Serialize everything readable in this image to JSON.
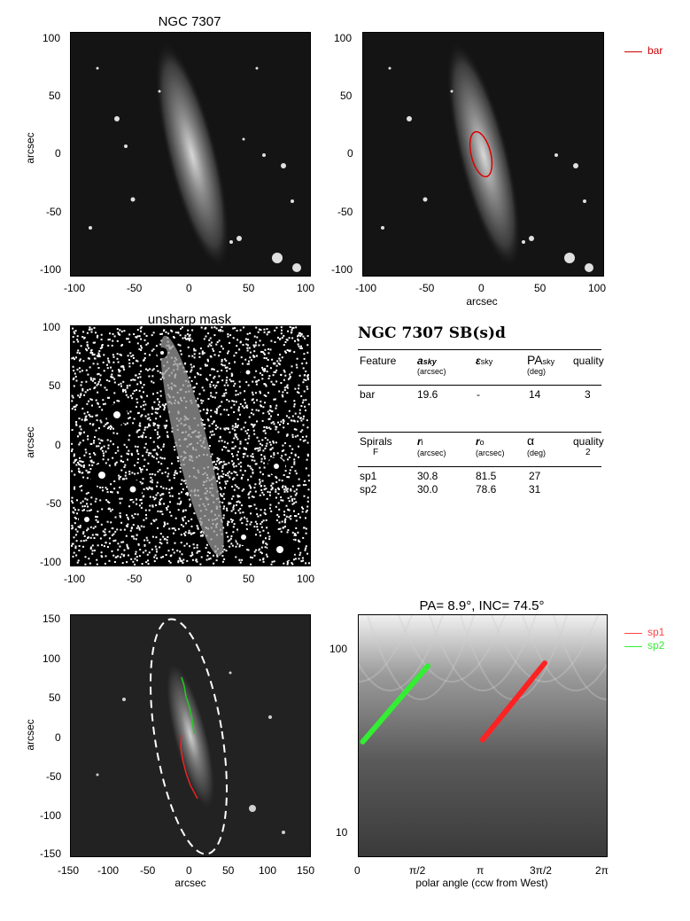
{
  "panels": {
    "p1": {
      "title": "NGC 7307",
      "ylabel": "arcsec",
      "xticks": [
        "-100",
        "-50",
        "0",
        "50",
        "100"
      ],
      "yticks": [
        "100",
        "50",
        "0",
        "-50",
        "-100"
      ]
    },
    "p2": {
      "xlabel": "arcsec",
      "xticks": [
        "-100",
        "-50",
        "0",
        "50",
        "100"
      ],
      "yticks": [
        "100",
        "50",
        "0",
        "-50",
        "-100"
      ],
      "legend": "bar",
      "legend_color": "#cc0000"
    },
    "p3": {
      "title": "unsharp mask",
      "ylabel": "arcsec",
      "xticks": [
        "-100",
        "-50",
        "0",
        "50",
        "100"
      ],
      "yticks": [
        "100",
        "50",
        "0",
        "-50",
        "-100"
      ]
    },
    "p5": {
      "ylabel": "arcsec",
      "xlabel": "arcsec",
      "xticks": [
        "-150",
        "-100",
        "-50",
        "0",
        "50",
        "100",
        "150"
      ],
      "yticks": [
        "150",
        "100",
        "50",
        "0",
        "-50",
        "-100",
        "-150"
      ]
    },
    "p6": {
      "title": "PA=   8.9°, INC=  74.5°",
      "xlabel": "polar angle (ccw from West)",
      "xticks": [
        "0",
        "π/2",
        "π",
        "3π/2",
        "2π"
      ],
      "yticks": [
        "100",
        "10"
      ],
      "legend": [
        {
          "name": "sp1",
          "color": "#ff4444"
        },
        {
          "name": "sp2",
          "color": "#33ee33"
        }
      ]
    }
  },
  "table": {
    "title": "NGC 7307  SB(s)d",
    "header1": {
      "feature": "Feature",
      "a": "a",
      "a_sub": "sky",
      "a_unit": "(arcsec)",
      "eps": "ε",
      "eps_sub": "sky",
      "pa": "PA",
      "pa_sub": "sky",
      "pa_unit": "(deg)",
      "quality": "quality"
    },
    "bar_row": {
      "name": "bar",
      "a": "19.6",
      "eps": "-",
      "pa": "14",
      "quality": "3"
    },
    "header2": {
      "spirals": "Spirals",
      "f": "F",
      "ri": "r",
      "ri_sub": "i",
      "ri_unit": "(arcsec)",
      "ro": "r",
      "ro_sub": "o",
      "ro_unit": "(arcsec)",
      "alpha": "α",
      "alpha_unit": "(deg)",
      "quality": "quality",
      "quality_val": "2"
    },
    "rows": [
      {
        "name": "sp1",
        "ri": "30.8",
        "ro": "81.5",
        "alpha": "27"
      },
      {
        "name": "sp2",
        "ri": "30.0",
        "ro": "78.6",
        "alpha": "31"
      }
    ]
  },
  "chart_data": [
    {
      "type": "scatter",
      "title": "PA=   8.9°, INC=  74.5°",
      "xlabel": "polar angle (ccw from West)",
      "xlim": [
        0,
        6.2832
      ],
      "ylim_log": [
        7,
        150
      ],
      "series": [
        {
          "name": "sp1",
          "x": [
            3.14,
            4.71
          ],
          "y": [
            30.8,
            81.5
          ]
        },
        {
          "name": "sp2",
          "x": [
            0.1,
            1.75
          ],
          "y": [
            30.0,
            78.6
          ]
        }
      ]
    }
  ]
}
